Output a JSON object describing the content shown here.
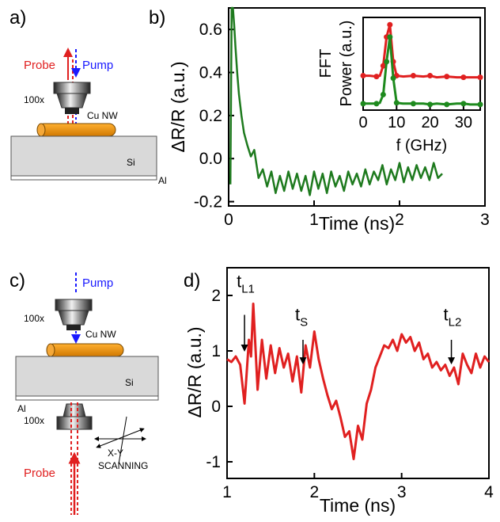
{
  "panels": {
    "a": {
      "label": "a)",
      "probe": "Probe",
      "pump": "Pump",
      "objective": "100x",
      "wire": "Cu NW",
      "substrate": "Si",
      "coating": "Al"
    },
    "c": {
      "label": "c)",
      "pump": "Pump",
      "objective_top": "100x",
      "wire": "Cu NW",
      "substrate": "Si",
      "coating": "Al",
      "objective_bottom": "100x",
      "probe": "Probe",
      "scan_axes": "X-Y",
      "scan_text": "SCANNING"
    }
  },
  "chart_data": [
    {
      "id": "b",
      "type": "line",
      "panel_label": "b)",
      "xlabel": "Time (ns)",
      "ylabel": "ΔR/R (a.u.)",
      "xlim": [
        0,
        3
      ],
      "ylim": [
        -0.22,
        0.7
      ],
      "xticks": [
        0,
        1,
        2,
        3
      ],
      "yticks": [
        -0.2,
        0.0,
        0.2,
        0.4,
        0.6
      ],
      "ytick_labels": [
        "-0.2",
        "0.0",
        "0.2",
        "0.4",
        "0.6"
      ],
      "series": [
        {
          "color": "#1e7a1e",
          "description": "decaying transient with ~8 GHz oscillation",
          "x": [
            0.02,
            0.035,
            0.05,
            0.065,
            0.08,
            0.1,
            0.12,
            0.15,
            0.18,
            0.22,
            0.26,
            0.3,
            0.35,
            0.4,
            0.45,
            0.5,
            0.55,
            0.6,
            0.65,
            0.7,
            0.75,
            0.8,
            0.85,
            0.9,
            0.95,
            1.0,
            1.05,
            1.1,
            1.15,
            1.2,
            1.25,
            1.3,
            1.35,
            1.4,
            1.45,
            1.5,
            1.55,
            1.6,
            1.65,
            1.7,
            1.75,
            1.8,
            1.85,
            1.9,
            1.95,
            2.0,
            2.05,
            2.1,
            2.15,
            2.2,
            2.25,
            2.3,
            2.35,
            2.4,
            2.45,
            2.5
          ],
          "y": [
            -0.12,
            0.7,
            0.7,
            0.62,
            0.52,
            0.4,
            0.3,
            0.2,
            0.12,
            0.06,
            0.01,
            0.04,
            -0.09,
            -0.05,
            -0.13,
            -0.06,
            -0.16,
            -0.08,
            -0.15,
            -0.06,
            -0.14,
            -0.07,
            -0.15,
            -0.08,
            -0.17,
            -0.06,
            -0.14,
            -0.07,
            -0.16,
            -0.06,
            -0.13,
            -0.08,
            -0.15,
            -0.06,
            -0.12,
            -0.07,
            -0.13,
            -0.05,
            -0.12,
            -0.06,
            -0.1,
            -0.03,
            -0.12,
            -0.05,
            -0.1,
            -0.02,
            -0.11,
            -0.04,
            -0.1,
            -0.03,
            -0.09,
            -0.04,
            -0.1,
            -0.02,
            -0.09,
            -0.07
          ]
        }
      ],
      "inset": {
        "type": "line",
        "ylabel_top": "FFT",
        "ylabel": "Power (a.u.)",
        "xlabel": "f (GHz)",
        "xlim": [
          0,
          35
        ],
        "xticks": [
          0,
          10,
          20,
          30
        ],
        "series": [
          {
            "color": "#e02020",
            "x": [
              0,
              2,
              4,
              5,
              6,
              7,
              8,
              9,
              10,
              12,
              15,
              18,
              20,
              22,
              25,
              28,
              30,
              32,
              35
            ],
            "y": [
              0.38,
              0.38,
              0.37,
              0.38,
              0.5,
              0.85,
              1.0,
              0.55,
              0.38,
              0.37,
              0.38,
              0.37,
              0.38,
              0.36,
              0.37,
              0.36,
              0.36,
              0.36,
              0.36
            ]
          },
          {
            "color": "#1e8a1e",
            "x": [
              0,
              2,
              4,
              5,
              6,
              7,
              8,
              9,
              10,
              12,
              15,
              18,
              20,
              22,
              25,
              28,
              30,
              32,
              35
            ],
            "y": [
              0.04,
              0.04,
              0.04,
              0.05,
              0.15,
              0.55,
              0.85,
              0.35,
              0.05,
              0.04,
              0.04,
              0.04,
              0.03,
              0.04,
              0.03,
              0.04,
              0.04,
              0.03,
              0.03
            ]
          }
        ]
      }
    },
    {
      "id": "d",
      "type": "line",
      "panel_label": "d)",
      "xlabel": "Time (ns)",
      "ylabel": "ΔR/R (a.u.)",
      "xlim": [
        1,
        4
      ],
      "ylim": [
        -1.3,
        2.5
      ],
      "xticks": [
        1,
        2,
        3,
        4
      ],
      "yticks": [
        -1,
        0,
        1,
        2
      ],
      "series": [
        {
          "color": "#e02020",
          "description": "scanning transient signal",
          "x": [
            1.0,
            1.05,
            1.1,
            1.15,
            1.2,
            1.225,
            1.25,
            1.275,
            1.3,
            1.35,
            1.4,
            1.45,
            1.5,
            1.55,
            1.6,
            1.65,
            1.7,
            1.75,
            1.8,
            1.85,
            1.9,
            1.95,
            2.0,
            2.05,
            2.1,
            2.15,
            2.2,
            2.25,
            2.3,
            2.35,
            2.4,
            2.45,
            2.5,
            2.55,
            2.6,
            2.65,
            2.7,
            2.75,
            2.8,
            2.85,
            2.9,
            2.95,
            3.0,
            3.05,
            3.1,
            3.15,
            3.2,
            3.25,
            3.3,
            3.35,
            3.4,
            3.45,
            3.5,
            3.55,
            3.6,
            3.65,
            3.7,
            3.75,
            3.8,
            3.85,
            3.9,
            3.95,
            4.0
          ],
          "y": [
            0.85,
            0.8,
            0.9,
            0.75,
            0.05,
            0.6,
            1.2,
            0.9,
            1.85,
            0.3,
            1.2,
            0.5,
            1.1,
            0.6,
            1.05,
            0.7,
            0.95,
            0.45,
            0.9,
            0.25,
            1.1,
            0.7,
            1.35,
            0.85,
            0.5,
            0.2,
            -0.05,
            0.1,
            -0.2,
            -0.55,
            -0.45,
            -0.95,
            -0.35,
            -0.6,
            0.05,
            0.3,
            0.7,
            0.9,
            1.1,
            1.05,
            1.2,
            1.0,
            1.3,
            1.15,
            1.25,
            1.0,
            1.15,
            0.85,
            0.95,
            0.7,
            0.8,
            0.65,
            0.75,
            0.55,
            0.7,
            0.4,
            0.95,
            0.75,
            0.6,
            0.95,
            0.7,
            0.9,
            0.8
          ]
        }
      ],
      "annotations": [
        {
          "base": "t",
          "sub": "L1",
          "x": 1.2,
          "y_text": 2.15,
          "y_arrow_top": 1.65,
          "y_arrow_bottom": 1.05
        },
        {
          "base": "t",
          "sub": "S",
          "x": 1.87,
          "y_text": 1.55,
          "y_arrow_top": 1.2,
          "y_arrow_bottom": 0.82
        },
        {
          "base": "t",
          "sub": "L2",
          "x": 3.57,
          "y_text": 1.55,
          "y_arrow_top": 1.2,
          "y_arrow_bottom": 0.82
        }
      ]
    }
  ]
}
